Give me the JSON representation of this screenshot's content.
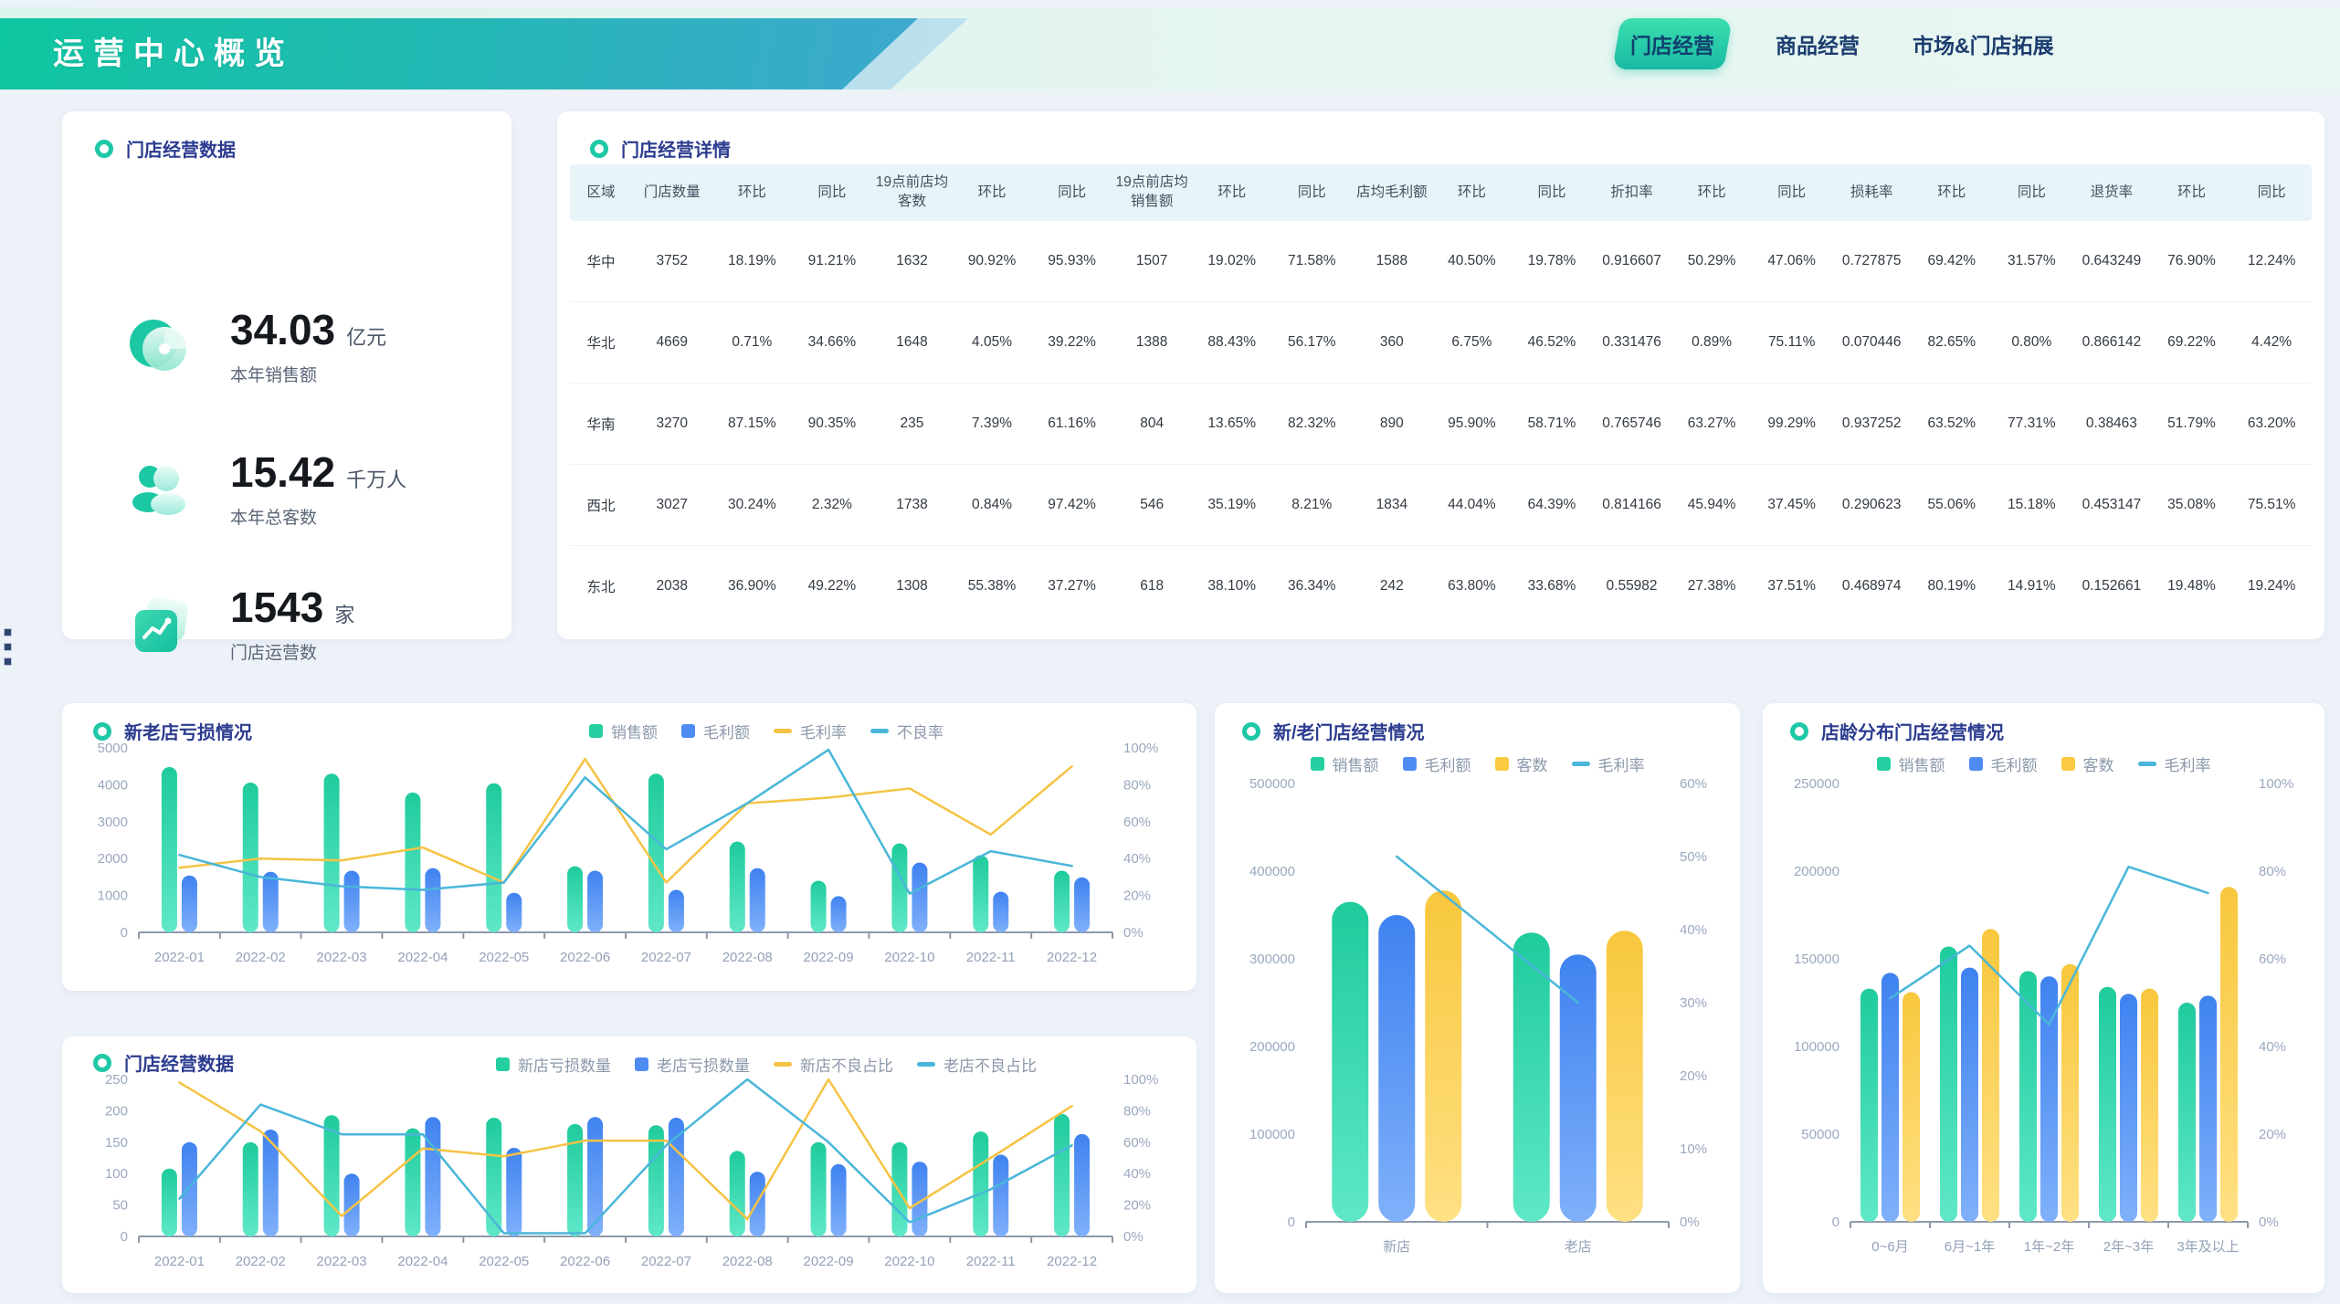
{
  "header": {
    "title": "运营中心概览",
    "tabs": [
      {
        "label": "门店经营",
        "active": true
      },
      {
        "label": "商品经营",
        "active": false
      },
      {
        "label": "市场&门店拓展",
        "active": false
      }
    ]
  },
  "kpi_card": {
    "title": "门店经营数据",
    "items": [
      {
        "icon": "sales-pie-icon",
        "value": "34.03",
        "unit": "亿元",
        "label": "本年销售额"
      },
      {
        "icon": "customers-icon",
        "value": "15.42",
        "unit": "千万人",
        "label": "本年总客数"
      },
      {
        "icon": "stores-icon",
        "value": "1543",
        "unit": "家",
        "label": "门店运营数"
      }
    ]
  },
  "table_card": {
    "title": "门店经营详情",
    "columns": [
      "区域",
      "门店数量",
      "环比",
      "同比",
      "19点前店均客数",
      "环比",
      "同比",
      "19点前店均销售额",
      "环比",
      "同比",
      "店均毛利额",
      "环比",
      "同比",
      "折扣率",
      "环比",
      "同比",
      "损耗率",
      "环比",
      "同比",
      "退货率",
      "环比",
      "同比"
    ],
    "rows": [
      [
        "华中",
        "3752",
        "18.19%",
        "91.21%",
        "1632",
        "90.92%",
        "95.93%",
        "1507",
        "19.02%",
        "71.58%",
        "1588",
        "40.50%",
        "19.78%",
        "0.916607",
        "50.29%",
        "47.06%",
        "0.727875",
        "69.42%",
        "31.57%",
        "0.643249",
        "76.90%",
        "12.24%"
      ],
      [
        "华北",
        "4669",
        "0.71%",
        "34.66%",
        "1648",
        "4.05%",
        "39.22%",
        "1388",
        "88.43%",
        "56.17%",
        "360",
        "6.75%",
        "46.52%",
        "0.331476",
        "0.89%",
        "75.11%",
        "0.070446",
        "82.65%",
        "0.80%",
        "0.866142",
        "69.22%",
        "4.42%"
      ],
      [
        "华南",
        "3270",
        "87.15%",
        "90.35%",
        "235",
        "7.39%",
        "61.16%",
        "804",
        "13.65%",
        "82.32%",
        "890",
        "95.90%",
        "58.71%",
        "0.765746",
        "63.27%",
        "99.29%",
        "0.937252",
        "63.52%",
        "77.31%",
        "0.38463",
        "51.79%",
        "63.20%"
      ],
      [
        "西北",
        "3027",
        "30.24%",
        "2.32%",
        "1738",
        "0.84%",
        "97.42%",
        "546",
        "35.19%",
        "8.21%",
        "1834",
        "44.04%",
        "64.39%",
        "0.814166",
        "45.94%",
        "37.45%",
        "0.290623",
        "55.06%",
        "15.18%",
        "0.453147",
        "35.08%",
        "75.51%"
      ],
      [
        "东北",
        "2038",
        "36.90%",
        "49.22%",
        "1308",
        "55.38%",
        "37.27%",
        "618",
        "38.10%",
        "36.34%",
        "242",
        "63.80%",
        "33.68%",
        "0.55982",
        "27.38%",
        "37.51%",
        "0.468974",
        "80.19%",
        "14.91%",
        "0.152661",
        "19.48%",
        "19.24%"
      ]
    ]
  },
  "chart_data": [
    {
      "title": "新老店亏损情况",
      "type": "bar+line",
      "categories": [
        "2022-01",
        "2022-02",
        "2022-03",
        "2022-04",
        "2022-05",
        "2022-06",
        "2022-07",
        "2022-08",
        "2022-09",
        "2022-10",
        "2022-11",
        "2022-12"
      ],
      "bar_series": [
        {
          "name": "销售额",
          "colors": [
            "#1fcb9c",
            "#5fe8c8"
          ],
          "legend_color": "#26cfa1",
          "values": [
            4480,
            4060,
            4300,
            3790,
            4040,
            1790,
            4300,
            2460,
            1400,
            2410,
            2090,
            1670
          ]
        },
        {
          "name": "毛利额",
          "colors": [
            "#3f82f0",
            "#7fb0fa"
          ],
          "legend_color": "#4e8cf4",
          "values": [
            1540,
            1640,
            1670,
            1740,
            1070,
            1670,
            1150,
            1740,
            980,
            1890,
            1100,
            1490
          ]
        }
      ],
      "line_series": [
        {
          "name": "毛利率",
          "color": "#f5c344",
          "values": [
            35,
            40,
            39,
            46,
            27,
            94,
            27,
            70,
            73,
            78,
            53,
            90
          ]
        },
        {
          "name": "不良率",
          "color": "#49b6d9",
          "values": [
            42,
            30,
            25,
            23,
            27,
            84,
            45,
            70,
            99,
            21,
            44,
            36
          ]
        }
      ],
      "left_axis": {
        "max": 5000,
        "tick_labels": [
          "0",
          "1000",
          "2000",
          "3000",
          "4000",
          "5000"
        ]
      },
      "right_axis": {
        "max": 100,
        "tick_labels": [
          "0%",
          "20%",
          "40%",
          "60%",
          "80%",
          "100%"
        ]
      },
      "grid": false,
      "legend_position": "top-center"
    },
    {
      "title": "门店经营数据",
      "type": "bar+line",
      "categories": [
        "2022-01",
        "2022-02",
        "2022-03",
        "2022-04",
        "2022-05",
        "2022-06",
        "2022-07",
        "2022-08",
        "2022-09",
        "2022-10",
        "2022-11",
        "2022-12"
      ],
      "bar_series": [
        {
          "name": "新店亏损数量",
          "colors": [
            "#1fcb9c",
            "#5fe8c8"
          ],
          "legend_color": "#26cfa1",
          "values": [
            108,
            150,
            193,
            172,
            189,
            179,
            177,
            136,
            150,
            150,
            167,
            195
          ]
        },
        {
          "name": "老店亏损数量",
          "colors": [
            "#3f82f0",
            "#7fb0fa"
          ],
          "legend_color": "#4e8cf4",
          "values": [
            150,
            170,
            100,
            190,
            141,
            190,
            189,
            103,
            115,
            119,
            130,
            163
          ]
        }
      ],
      "line_series": [
        {
          "name": "新店不良占比",
          "color": "#f5c344",
          "values": [
            98,
            67,
            13,
            56,
            51,
            61,
            61,
            11,
            100,
            18,
            50,
            83
          ]
        },
        {
          "name": "老店不良占比",
          "color": "#49b6d9",
          "values": [
            24,
            84,
            65,
            65,
            2,
            2,
            58,
            100,
            60,
            9,
            30,
            58
          ]
        }
      ],
      "left_axis": {
        "max": 250,
        "tick_labels": [
          "0",
          "50",
          "100",
          "150",
          "200",
          "250"
        ]
      },
      "right_axis": {
        "max": 100,
        "tick_labels": [
          "0%",
          "20%",
          "40%",
          "60%",
          "80%",
          "100%"
        ]
      },
      "grid": false,
      "legend_position": "top-center"
    },
    {
      "title": "新/老门店经营情况",
      "type": "bar+line",
      "categories": [
        "新店",
        "老店"
      ],
      "bar_series": [
        {
          "name": "销售额",
          "colors": [
            "#1fcb9c",
            "#5fe8c8"
          ],
          "legend_color": "#26cfa1",
          "values": [
            365000,
            330000
          ]
        },
        {
          "name": "毛利额",
          "colors": [
            "#3f82f0",
            "#7fb0fa"
          ],
          "legend_color": "#4e8cf4",
          "values": [
            350000,
            305000
          ]
        },
        {
          "name": "客数",
          "colors": [
            "#f8c73d",
            "#ffe083"
          ],
          "legend_color": "#fbca43",
          "values": [
            378000,
            332000
          ]
        }
      ],
      "line_series": [
        {
          "name": "毛利率",
          "color": "#49b6d9",
          "values": [
            50,
            30
          ]
        }
      ],
      "left_axis": {
        "max": 500000,
        "tick_labels": [
          "0",
          "100000",
          "200000",
          "300000",
          "400000",
          "500000"
        ]
      },
      "right_axis": {
        "max": 60,
        "tick_labels": [
          "0%",
          "10%",
          "20%",
          "30%",
          "40%",
          "50%",
          "60%"
        ]
      },
      "grid": false,
      "legend_position": "top-center"
    },
    {
      "title": "店龄分布门店经营情况",
      "type": "bar+line",
      "categories": [
        "0~6月",
        "6月~1年",
        "1年~2年",
        "2年~3年",
        "3年及以上"
      ],
      "bar_series": [
        {
          "name": "销售额",
          "colors": [
            "#1fcb9c",
            "#5fe8c8"
          ],
          "legend_color": "#26cfa1",
          "values": [
            133000,
            157000,
            143000,
            134000,
            125000
          ]
        },
        {
          "name": "毛利额",
          "colors": [
            "#3f82f0",
            "#7fb0fa"
          ],
          "legend_color": "#4e8cf4",
          "values": [
            142000,
            145000,
            140000,
            130000,
            129000
          ]
        },
        {
          "name": "客数",
          "colors": [
            "#f8c73d",
            "#ffe083"
          ],
          "legend_color": "#fbca43",
          "values": [
            131000,
            167000,
            147000,
            133000,
            191000
          ]
        }
      ],
      "line_series": [
        {
          "name": "毛利率",
          "color": "#49b6d9",
          "values": [
            51,
            63,
            45,
            81,
            75
          ]
        }
      ],
      "left_axis": {
        "max": 250000,
        "tick_labels": [
          "0",
          "50000",
          "100000",
          "150000",
          "200000",
          "250000"
        ]
      },
      "right_axis": {
        "max": 100,
        "tick_labels": [
          "0%",
          "20%",
          "40%",
          "60%",
          "80%",
          "100%"
        ]
      },
      "grid": false,
      "legend_position": "top-center"
    }
  ],
  "colors": {
    "brand_teal": "#14c2a2",
    "banner_gradient_end": "#3fa7d0",
    "section_title": "#2c3c8f",
    "axis_label": "#9aa8bf",
    "bar_green": "#26cfa1",
    "bar_blue": "#4e8cf4",
    "bar_yellow": "#fbca43",
    "line_yellow": "#f5c344",
    "line_teal": "#49b6d9"
  }
}
